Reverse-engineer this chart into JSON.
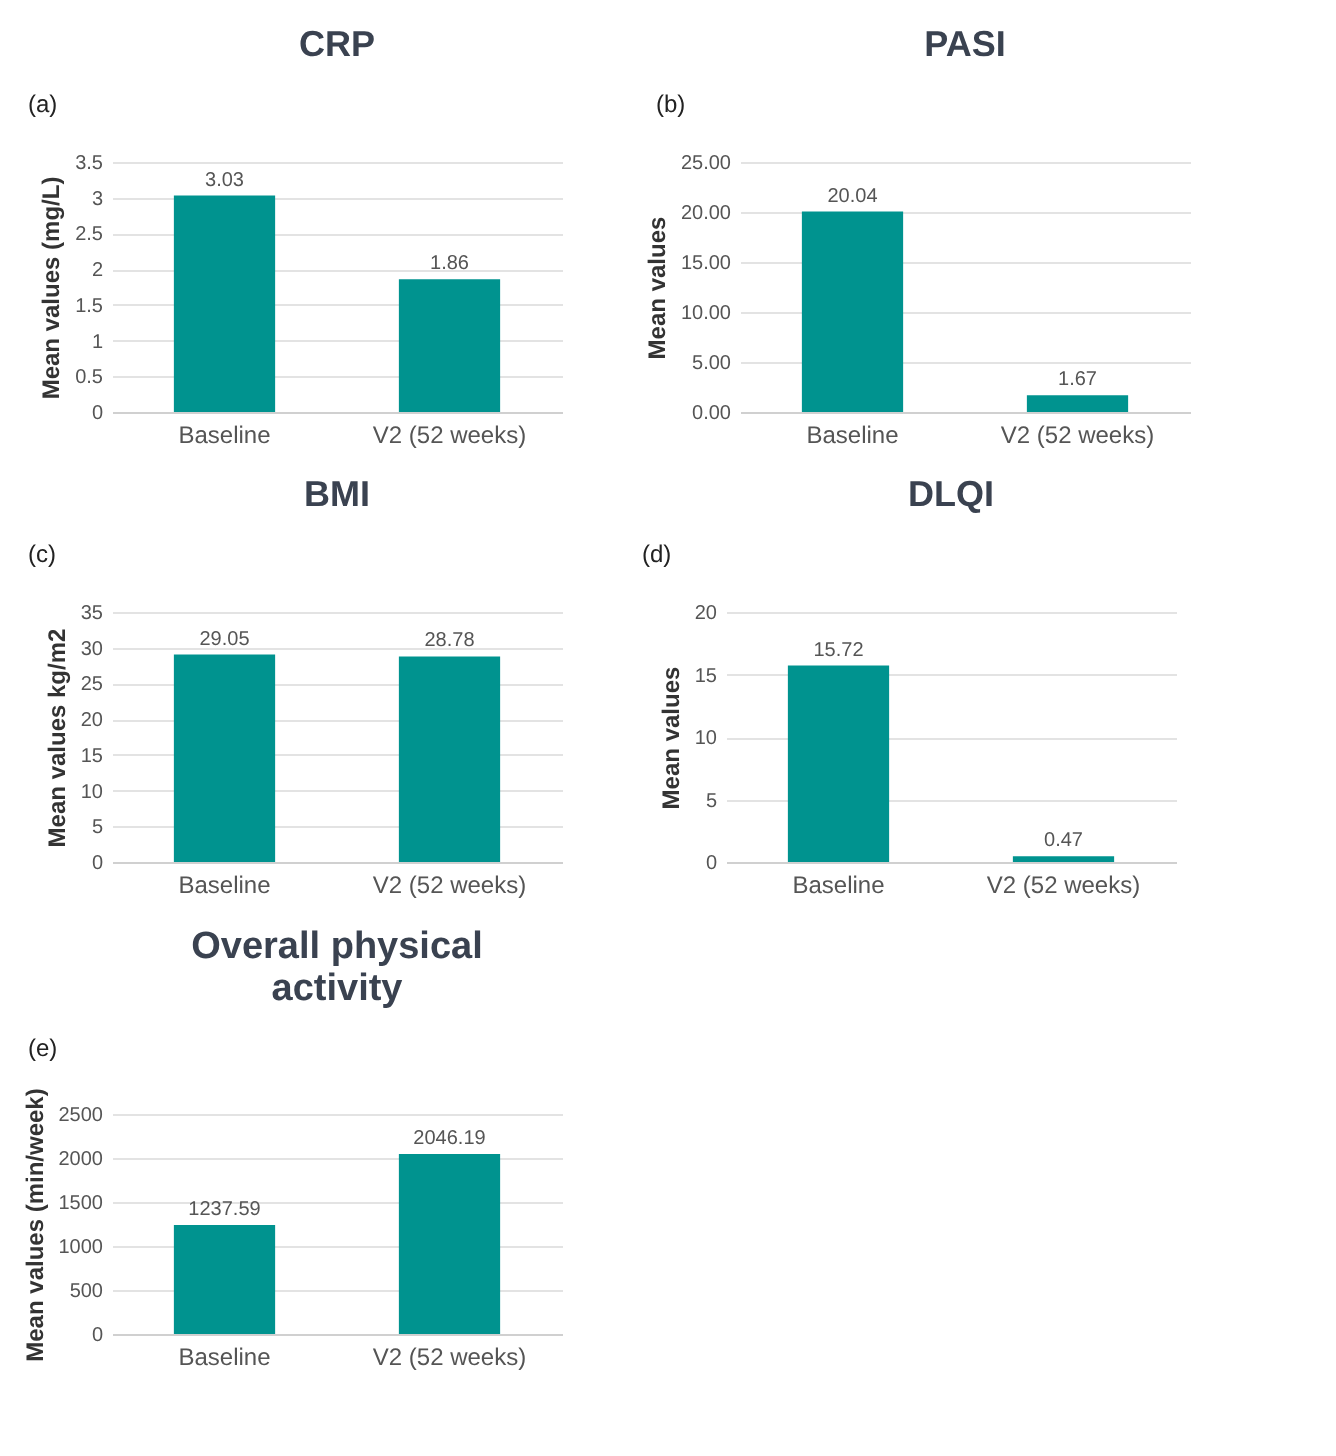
{
  "chart_data": [
    {
      "type": "bar",
      "title": "CRP",
      "ylabel": "Mean values (mg/L)",
      "annotations": [
        "(a)"
      ],
      "categories": [
        "Baseline",
        "V2 (52 weeks)"
      ],
      "values": [
        3.03,
        1.86
      ],
      "color": "#00938f",
      "ylim": [
        0,
        3.5
      ],
      "yticks": [
        0,
        0.5,
        1,
        1.5,
        2,
        2.5,
        3,
        3.5
      ],
      "grid": "y",
      "data_labels": true
    },
    {
      "type": "bar",
      "title": "PASI",
      "ylabel": "Mean values",
      "annotations": [
        "(b)"
      ],
      "categories": [
        "Baseline",
        "V2 (52 weeks)"
      ],
      "values": [
        20.04,
        1.67
      ],
      "color": "#00938f",
      "ylim": [
        0,
        25
      ],
      "yticks": [
        {
          "value": 0,
          "label": "0.00"
        },
        {
          "value": 5,
          "label": "5.00"
        },
        {
          "value": 10,
          "label": "10.00"
        },
        {
          "value": 15,
          "label": "15.00"
        },
        {
          "value": 20,
          "label": "20.00"
        },
        {
          "value": 25,
          "label": "25.00"
        }
      ],
      "grid": "y",
      "data_labels": true
    },
    {
      "type": "bar",
      "title": "BMI",
      "ylabel": "Mean values kg/m2",
      "annotations": [
        "(c)"
      ],
      "categories": [
        "Baseline",
        "V2 (52 weeks)"
      ],
      "values": [
        29.05,
        28.78
      ],
      "color": "#00938f",
      "ylim": [
        0,
        35
      ],
      "yticks": [
        0,
        5,
        10,
        15,
        20,
        25,
        30,
        35
      ],
      "grid": "y",
      "data_labels": true
    },
    {
      "type": "bar",
      "title": "DLQI",
      "ylabel": "Mean values",
      "annotations": [
        "(d)"
      ],
      "categories": [
        "Baseline",
        "V2 (52 weeks)"
      ],
      "values": [
        15.72,
        0.47
      ],
      "color": "#00938f",
      "ylim": [
        0,
        20
      ],
      "yticks": [
        0,
        5,
        10,
        15,
        20
      ],
      "grid": "y",
      "data_labels": true
    },
    {
      "type": "bar",
      "title": "Overall physical activity",
      "ylabel": "Mean values (min/week)",
      "annotations": [
        "(e)"
      ],
      "categories": [
        "Baseline",
        "V2 (52 weeks)"
      ],
      "values": [
        1237.59,
        2046.19
      ],
      "color": "#00938f",
      "ylim": [
        0,
        2500
      ],
      "yticks": [
        0,
        500,
        1000,
        1500,
        2000,
        2500
      ],
      "grid": "y",
      "data_labels": true
    }
  ]
}
